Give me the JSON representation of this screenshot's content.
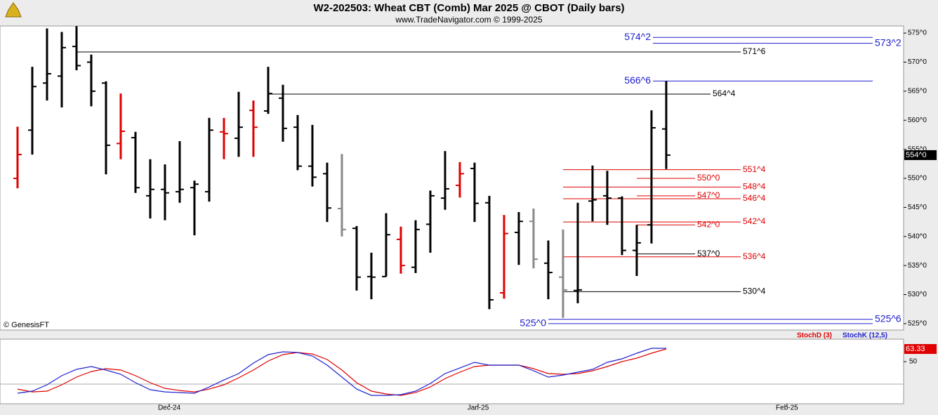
{
  "chart_data": [
    {
      "type": "ohlc",
      "title": "W2-202503:  Wheat CBT (Comb) Mar 2025 @ CBOT  (Daily bars)",
      "subtitle": "www.TradeNavigator.com © 1999-2025",
      "watermark": "© GenesisFT",
      "xlim": [
        -1.19,
        60.1
      ],
      "ylim": [
        523.9,
        576.1
      ],
      "yticks": [
        {
          "value": 525,
          "label": "525^0"
        },
        {
          "value": 530,
          "label": "530^0"
        },
        {
          "value": 535,
          "label": "535^0"
        },
        {
          "value": 540,
          "label": "540^0"
        },
        {
          "value": 545,
          "label": "545^0"
        },
        {
          "value": 550,
          "label": "550^0"
        },
        {
          "value": 555,
          "label": "555^0"
        },
        {
          "value": 560,
          "label": "560^0"
        },
        {
          "value": 565,
          "label": "565^0"
        },
        {
          "value": 570,
          "label": "570^0"
        },
        {
          "value": 575,
          "label": "575^0"
        }
      ],
      "x": [
        0,
        1,
        2,
        3,
        4,
        5,
        6,
        7,
        8,
        9,
        10,
        11,
        12,
        13,
        14,
        15,
        16,
        17,
        18,
        19,
        20,
        21,
        22,
        23,
        24,
        25,
        26,
        27,
        28,
        29,
        30,
        31,
        32,
        33,
        34,
        35,
        36,
        37,
        38,
        39,
        40,
        41,
        42,
        43,
        44
      ],
      "open": [
        550.0,
        558.3,
        566.4,
        567.6,
        572.7,
        570.0,
        566.4,
        556.0,
        557.0,
        547.0,
        548.1,
        547.7,
        548.4,
        547.7,
        558.0,
        556.9,
        561.7,
        561.6,
        563.8,
        558.8,
        552.1,
        550.8,
        544.8,
        541.4,
        533.1,
        533.1,
        539.5,
        534.7,
        542.1,
        546.6,
        548.8,
        551.7,
        545.8,
        530.3,
        540.7,
        542.6,
        535.4,
        533.0,
        530.7,
        546.1,
        547.0,
        546.6,
        537.6,
        542.0,
        558.5
      ],
      "high": [
        558.9,
        569.2,
        575.8,
        575.2,
        576.2,
        571.3,
        566.7,
        564.6,
        558.0,
        553.3,
        552.4,
        556.4,
        549.6,
        560.4,
        560.4,
        564.9,
        563.4,
        569.2,
        566.1,
        560.9,
        559.2,
        552.7,
        554.2,
        541.8,
        537.2,
        544.0,
        541.7,
        542.8,
        547.9,
        554.7,
        552.8,
        552.7,
        547.0,
        543.7,
        544.2,
        544.8,
        539.3,
        541.2,
        545.8,
        552.2,
        551.3,
        546.9,
        542.0,
        561.7,
        566.75
      ],
      "low": [
        548.3,
        554.1,
        563.4,
        562.2,
        568.6,
        562.4,
        550.7,
        553.3,
        547.5,
        543.1,
        542.8,
        545.8,
        540.2,
        546.0,
        553.3,
        553.7,
        553.7,
        561.1,
        556.3,
        551.4,
        548.6,
        542.5,
        540.0,
        530.7,
        529.2,
        533.1,
        533.6,
        533.7,
        537.2,
        544.6,
        546.7,
        542.5,
        527.5,
        529.3,
        535.1,
        534.5,
        529.2,
        526.0,
        528.5,
        542.6,
        542.0,
        536.8,
        533.2,
        538.8,
        551.6
      ],
      "close": [
        554.1,
        565.8,
        568.0,
        572.5,
        569.4,
        565.0,
        555.7,
        558.1,
        548.4,
        548.1,
        547.5,
        548.1,
        549.0,
        558.3,
        557.7,
        558.8,
        558.8,
        564.6,
        558.6,
        552.1,
        550.2,
        544.9,
        541.2,
        533.0,
        533.0,
        540.3,
        535.0,
        541.2,
        547.0,
        548.2,
        550.8,
        545.7,
        529.1,
        540.5,
        542.6,
        536.1,
        533.8,
        530.8,
        530.8,
        546.3,
        546.6,
        537.6,
        538.9,
        558.7,
        554.0
      ],
      "colors": [
        "#e00000",
        "#000000",
        "#000000",
        "#000000",
        "#000000",
        "#000000",
        "#000000",
        "#e00000",
        "#000000",
        "#000000",
        "#000000",
        "#000000",
        "#000000",
        "#000000",
        "#e00000",
        "#000000",
        "#e00000",
        "#000000",
        "#000000",
        "#000000",
        "#000000",
        "#000000",
        "#888888",
        "#000000",
        "#000000",
        "#000000",
        "#e00000",
        "#000000",
        "#000000",
        "#000000",
        "#e00000",
        "#000000",
        "#000000",
        "#e00000",
        "#000000",
        "#888888",
        "#000000",
        "#888888",
        "#000000",
        "#000000",
        "#000000",
        "#000000",
        "#000000",
        "#000000",
        "#000000"
      ],
      "last_label": "554^0",
      "levels": [
        {
          "value": 574.25,
          "label": "574^2",
          "color": "#2020d0"
        },
        {
          "value": 573.25,
          "label": "573^2",
          "color": "#2020d0"
        },
        {
          "value": 571.75,
          "label": "571^6",
          "color": "#000000"
        },
        {
          "value": 566.75,
          "label": "566^6",
          "color": "#2020d0"
        },
        {
          "value": 564.5,
          "label": "564^4",
          "color": "#000000"
        },
        {
          "value": 551.5,
          "label": "551^4",
          "color": "#e00000"
        },
        {
          "value": 550,
          "label": "550^0",
          "color": "#e00000"
        },
        {
          "value": 548.5,
          "label": "548^4",
          "color": "#e00000"
        },
        {
          "value": 547,
          "label": "547^0",
          "color": "#e00000"
        },
        {
          "value": 546.5,
          "label": "546^4",
          "color": "#e00000"
        },
        {
          "value": 542.5,
          "label": "542^4",
          "color": "#e00000"
        },
        {
          "value": 542,
          "label": "542^0",
          "color": "#e00000"
        },
        {
          "value": 537,
          "label": "537^0",
          "color": "#000000"
        },
        {
          "value": 536.5,
          "label": "536^4",
          "color": "#e00000"
        },
        {
          "value": 530.5,
          "label": "530^4",
          "color": "#000000"
        },
        {
          "value": 525.75,
          "label": "525^6",
          "color": "#2020d0"
        },
        {
          "value": 525,
          "label": "525^0",
          "color": "#2020d0"
        }
      ]
    },
    {
      "type": "line",
      "xlim": [
        -1.19,
        60.1
      ],
      "ylim": [
        5.6,
        73.7
      ],
      "yticks": [
        50
      ],
      "xticks": [
        {
          "value": 10.29,
          "label": "Dec-24"
        },
        {
          "value": 31.24,
          "label": "Jan-25"
        },
        {
          "value": 52.19,
          "label": "Feb-25"
        }
      ],
      "x": [
        0,
        1,
        2,
        3,
        4,
        5,
        6,
        7,
        8,
        9,
        10,
        11,
        12,
        13,
        14,
        15,
        16,
        17,
        18,
        19,
        20,
        21,
        22,
        23,
        24,
        25,
        26,
        27,
        28,
        29,
        30,
        31,
        32,
        33,
        34,
        35,
        36,
        37,
        38,
        39,
        40,
        41,
        42,
        43,
        44
      ],
      "series": [
        {
          "name": "StochD (3)",
          "color": "#e00000",
          "values": [
            21.1,
            18.1,
            18.9,
            25.6,
            33.7,
            39.6,
            42.6,
            41.1,
            35.2,
            27.8,
            21.9,
            19.6,
            18.1,
            21.1,
            25.6,
            33.0,
            41.1,
            50.7,
            57.4,
            59.6,
            58.1,
            52.2,
            41.1,
            27.8,
            18.9,
            15.9,
            14.4,
            17.4,
            23.3,
            32.2,
            38.9,
            44.8,
            46.3,
            46.3,
            46.3,
            42.6,
            37.4,
            36.7,
            37.4,
            40.4,
            44.8,
            50.0,
            53.7,
            58.9,
            63.33
          ]
        },
        {
          "name": "StochK (12,5)",
          "color": "#2020d0",
          "values": [
            16.7,
            18.9,
            25.6,
            35.2,
            41.9,
            44.8,
            41.1,
            36.7,
            27.8,
            20.4,
            18.1,
            17.4,
            16.7,
            23.3,
            30.7,
            37.4,
            48.5,
            57.4,
            60.4,
            59.6,
            55.9,
            46.3,
            33.7,
            21.1,
            14.4,
            14.4,
            15.2,
            18.9,
            27.0,
            37.4,
            43.3,
            49.3,
            46.3,
            46.3,
            46.3,
            40.4,
            33.7,
            35.9,
            38.9,
            41.9,
            49.3,
            53.0,
            58.9,
            64.1,
            64.1
          ]
        }
      ]
    }
  ]
}
